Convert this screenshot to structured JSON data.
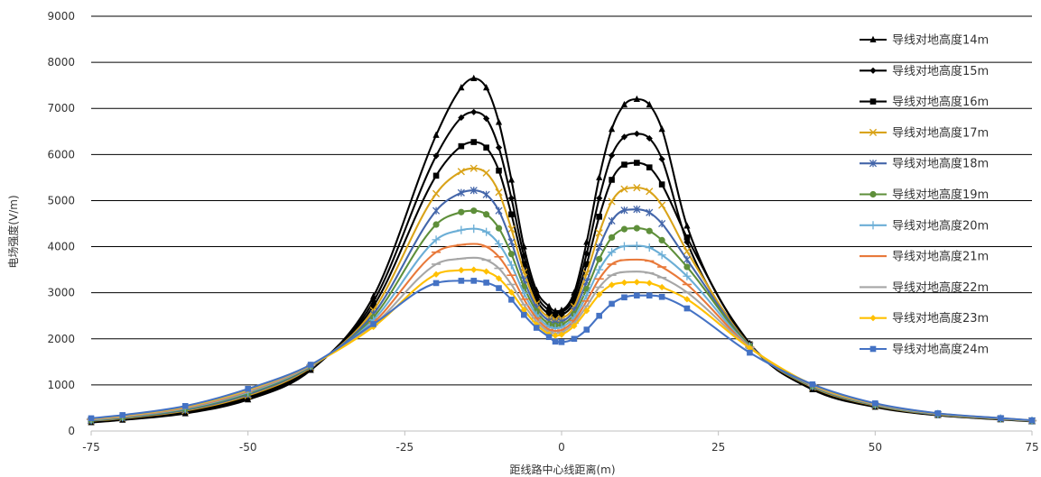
{
  "chart_data": {
    "type": "line",
    "title": "",
    "xlabel": "距线路中心线距离(m)",
    "ylabel": "电场强度(V/m)",
    "xlim": [
      -75,
      75
    ],
    "ylim": [
      0,
      9000
    ],
    "x_ticks": [
      -75,
      -50,
      -25,
      0,
      25,
      50,
      75
    ],
    "y_ticks": [
      0,
      1000,
      2000,
      3000,
      4000,
      5000,
      6000,
      7000,
      8000,
      9000
    ],
    "grid": "horizontal",
    "legend_position": "right",
    "series": [
      {
        "name": "导线对地高度14m",
        "color": "#000000",
        "marker": "triangle",
        "x": [
          -75,
          -70,
          -60,
          -50,
          -40,
          -30,
          -20,
          -16,
          -14,
          -12,
          -10,
          -8,
          -6,
          -4,
          -2,
          -1,
          0,
          2,
          4,
          6,
          8,
          10,
          12,
          14,
          16,
          20,
          30,
          40,
          50,
          60,
          70,
          75
        ],
        "y": [
          185,
          240,
          380,
          680,
          1320,
          2920,
          6420,
          7450,
          7650,
          7450,
          6700,
          5450,
          4000,
          3050,
          2700,
          2600,
          2620,
          3000,
          4100,
          5500,
          6550,
          7080,
          7200,
          7080,
          6550,
          4450,
          1900,
          900,
          520,
          340,
          250,
          210
        ]
      },
      {
        "name": "导线对地高度15m",
        "color": "#000000",
        "marker": "diamond",
        "x": [
          -75,
          -70,
          -60,
          -50,
          -40,
          -30,
          -20,
          -16,
          -14,
          -12,
          -10,
          -8,
          -6,
          -4,
          -2,
          -1,
          0,
          2,
          4,
          6,
          8,
          10,
          12,
          14,
          16,
          20,
          30,
          40,
          50,
          60,
          70,
          75
        ],
        "y": [
          200,
          255,
          400,
          710,
          1340,
          2810,
          5970,
          6800,
          6920,
          6780,
          6150,
          5050,
          3800,
          2950,
          2620,
          2560,
          2580,
          2900,
          3850,
          5050,
          5980,
          6380,
          6450,
          6350,
          5900,
          4100,
          1890,
          920,
          530,
          345,
          255,
          212
        ]
      },
      {
        "name": "导线对地高度16m",
        "color": "#000000",
        "marker": "square",
        "x": [
          -75,
          -70,
          -60,
          -50,
          -40,
          -30,
          -20,
          -16,
          -14,
          -12,
          -10,
          -8,
          -6,
          -4,
          -2,
          -1,
          0,
          2,
          4,
          6,
          8,
          10,
          12,
          14,
          16,
          20,
          30,
          40,
          50,
          60,
          70,
          75
        ],
        "y": [
          210,
          265,
          420,
          740,
          1360,
          2710,
          5540,
          6180,
          6270,
          6150,
          5650,
          4700,
          3620,
          2850,
          2540,
          2500,
          2520,
          2800,
          3620,
          4650,
          5450,
          5780,
          5820,
          5720,
          5350,
          4200,
          1880,
          935,
          540,
          350,
          258,
          215
        ]
      },
      {
        "name": "导线对地高度17m",
        "color": "#D9A319",
        "marker": "x",
        "x": [
          -75,
          -70,
          -60,
          -50,
          -40,
          -30,
          -20,
          -16,
          -14,
          -12,
          -10,
          -8,
          -6,
          -4,
          -2,
          -1,
          0,
          2,
          4,
          6,
          8,
          10,
          12,
          14,
          16,
          20,
          30,
          40,
          50,
          60,
          70,
          75
        ],
        "y": [
          220,
          275,
          440,
          770,
          1380,
          2620,
          5150,
          5630,
          5700,
          5600,
          5180,
          4380,
          3450,
          2760,
          2460,
          2420,
          2440,
          2700,
          3420,
          4300,
          4980,
          5250,
          5280,
          5200,
          4900,
          3900,
          1860,
          950,
          550,
          355,
          262,
          218
        ]
      },
      {
        "name": "导线对地高度18m",
        "color": "#4466AA",
        "marker": "asterisk",
        "x": [
          -75,
          -70,
          -60,
          -50,
          -40,
          -30,
          -20,
          -16,
          -14,
          -12,
          -10,
          -8,
          -6,
          -4,
          -2,
          -1,
          0,
          2,
          4,
          6,
          8,
          10,
          12,
          14,
          16,
          20,
          30,
          40,
          50,
          60,
          70,
          75
        ],
        "y": [
          228,
          285,
          458,
          795,
          1395,
          2540,
          4780,
          5170,
          5220,
          5130,
          4780,
          4100,
          3280,
          2680,
          2390,
          2350,
          2370,
          2620,
          3240,
          3990,
          4560,
          4790,
          4810,
          4740,
          4500,
          3720,
          1850,
          962,
          560,
          360,
          265,
          220
        ]
      },
      {
        "name": "导线对地高度19m",
        "color": "#5E8F3A",
        "marker": "circle",
        "x": [
          -75,
          -70,
          -60,
          -50,
          -40,
          -30,
          -20,
          -16,
          -14,
          -12,
          -10,
          -8,
          -6,
          -4,
          -2,
          -1,
          0,
          2,
          4,
          6,
          8,
          10,
          12,
          14,
          16,
          20,
          30,
          40,
          50,
          60,
          70,
          75
        ],
        "y": [
          236,
          295,
          475,
          820,
          1405,
          2470,
          4480,
          4750,
          4780,
          4700,
          4400,
          3840,
          3130,
          2600,
          2320,
          2290,
          2310,
          2540,
          3080,
          3730,
          4200,
          4380,
          4400,
          4340,
          4140,
          3560,
          1840,
          972,
          568,
          365,
          268,
          222
        ]
      },
      {
        "name": "导线对地高度20m",
        "color": "#6BAED6",
        "marker": "plus",
        "x": [
          -75,
          -70,
          -60,
          -50,
          -40,
          -30,
          -20,
          -16,
          -14,
          -12,
          -10,
          -8,
          -6,
          -4,
          -2,
          -1,
          0,
          2,
          4,
          6,
          8,
          10,
          12,
          14,
          16,
          20,
          30,
          40,
          50,
          60,
          70,
          75
        ],
        "y": [
          244,
          305,
          490,
          842,
          1415,
          2410,
          4150,
          4360,
          4390,
          4320,
          4060,
          3600,
          2990,
          2520,
          2260,
          2230,
          2250,
          2470,
          2940,
          3500,
          3880,
          4010,
          4020,
          3980,
          3820,
          3360,
          1830,
          982,
          575,
          370,
          271,
          224
        ]
      },
      {
        "name": "导线对地高度21m",
        "color": "#E8793A",
        "marker": "dash",
        "x": [
          -75,
          -70,
          -60,
          -50,
          -40,
          -30,
          -20,
          -16,
          -14,
          -12,
          -10,
          -8,
          -6,
          -4,
          -2,
          -1,
          0,
          2,
          4,
          6,
          8,
          10,
          12,
          14,
          16,
          20,
          30,
          40,
          50,
          60,
          70,
          75
        ],
        "y": [
          252,
          315,
          505,
          862,
          1422,
          2350,
          3880,
          4040,
          4060,
          4000,
          3780,
          3380,
          2860,
          2450,
          2200,
          2170,
          2190,
          2400,
          2820,
          3300,
          3620,
          3710,
          3720,
          3690,
          3560,
          3180,
          1820,
          990,
          582,
          374,
          274,
          226
        ]
      },
      {
        "name": "导线对地高度22m",
        "color": "#A6A6A6",
        "marker": "dash",
        "x": [
          -75,
          -70,
          -60,
          -50,
          -40,
          -30,
          -20,
          -16,
          -14,
          -12,
          -10,
          -8,
          -6,
          -4,
          -2,
          -1,
          0,
          2,
          4,
          6,
          8,
          10,
          12,
          14,
          16,
          20,
          30,
          40,
          50,
          60,
          70,
          75
        ],
        "y": [
          260,
          325,
          518,
          880,
          1428,
          2300,
          3620,
          3740,
          3760,
          3710,
          3530,
          3180,
          2740,
          2380,
          2150,
          2120,
          2140,
          2340,
          2710,
          3120,
          3380,
          3450,
          3460,
          3430,
          3330,
          3010,
          1810,
          998,
          588,
          378,
          276,
          228
        ]
      },
      {
        "name": "导线对地高度23m",
        "color": "#FFC000",
        "marker": "diamond",
        "x": [
          -75,
          -70,
          -60,
          -50,
          -40,
          -30,
          -20,
          -16,
          -14,
          -12,
          -10,
          -8,
          -6,
          -4,
          -2,
          -1,
          0,
          2,
          4,
          6,
          8,
          10,
          12,
          14,
          16,
          20,
          30,
          40,
          50,
          60,
          70,
          75
        ],
        "y": [
          268,
          335,
          530,
          898,
          1433,
          2260,
          3400,
          3490,
          3500,
          3460,
          3310,
          3010,
          2630,
          2310,
          2100,
          2070,
          2090,
          2280,
          2610,
          2960,
          3170,
          3220,
          3230,
          3210,
          3120,
          2860,
          1800,
          1005,
          594,
          381,
          278,
          230
        ]
      },
      {
        "name": "导线对地高度24m",
        "color": "#4472C4",
        "marker": "square",
        "x": [
          -75,
          -70,
          -60,
          -50,
          -40,
          -30,
          -20,
          -16,
          -14,
          -12,
          -10,
          -8,
          -6,
          -4,
          -2,
          -1,
          0,
          2,
          4,
          6,
          8,
          10,
          12,
          14,
          16,
          20,
          30,
          40,
          50,
          60,
          70,
          75
        ],
        "y": [
          276,
          345,
          542,
          915,
          1438,
          2320,
          3210,
          3260,
          3260,
          3220,
          3100,
          2850,
          2520,
          2240,
          2040,
          1940,
          1930,
          2000,
          2200,
          2500,
          2760,
          2900,
          2940,
          2940,
          2910,
          2660,
          1700,
          1012,
          600,
          384,
          280,
          232
        ]
      }
    ]
  }
}
